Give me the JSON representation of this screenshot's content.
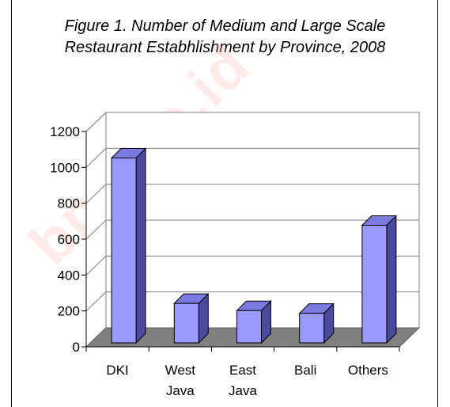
{
  "chart_data": {
    "type": "bar",
    "title_lines": [
      "Figure 1. Number of Medium and Large Scale",
      "Restaurant Estabhlishment by Province, 2008"
    ],
    "categories": [
      [
        "DKI"
      ],
      [
        "West",
        "Java"
      ],
      [
        "East",
        "Java"
      ],
      [
        "Bali"
      ],
      [
        "Others"
      ]
    ],
    "values": [
      1030,
      220,
      180,
      165,
      655
    ],
    "ylim": [
      0,
      1200
    ],
    "yticks": [
      0,
      200,
      400,
      600,
      800,
      1000,
      1200
    ],
    "grid": true,
    "legend": "none",
    "colors": {
      "bar_front": "#9999ff",
      "bar_side": "#4a4a9e",
      "bar_top": "#7a7ae0",
      "floor": "#808080",
      "grid": "#808080",
      "back_wall": "#ffffff"
    }
  },
  "watermark": "bps.go.id"
}
